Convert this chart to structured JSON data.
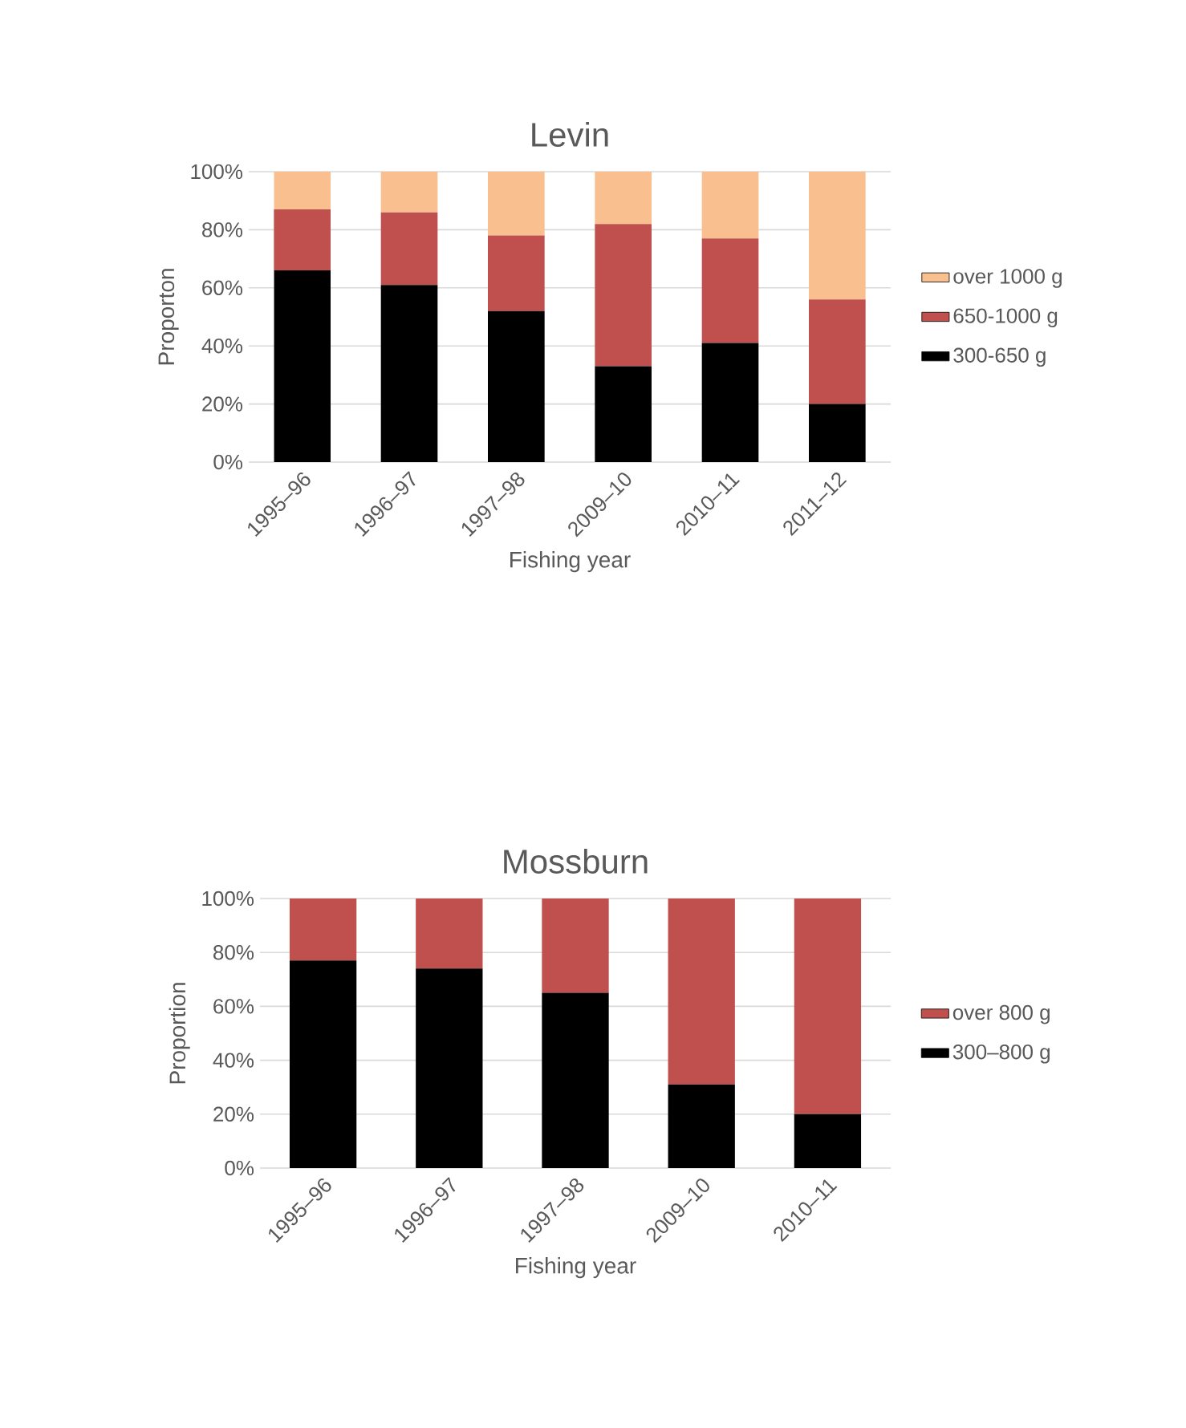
{
  "chart_data": [
    {
      "type": "bar",
      "stacked": true,
      "title": "Levin",
      "xlabel": "Fishing year",
      "ylabel": "Proporton",
      "categories": [
        "1995–96",
        "1996–97",
        "1997–98",
        "2009–10",
        "2010–11",
        "2011–12"
      ],
      "series": [
        {
          "name": "300-650 g",
          "color": "#000000",
          "values": [
            66,
            61,
            52,
            33,
            41,
            20
          ]
        },
        {
          "name": "650-1000 g",
          "color": "#c0504d",
          "values": [
            21,
            25,
            26,
            49,
            36,
            36
          ]
        },
        {
          "name": "over 1000 g",
          "color": "#f9bf8f",
          "values": [
            13,
            14,
            22,
            18,
            23,
            44
          ]
        }
      ],
      "ylim": [
        0,
        100
      ],
      "yticks": [
        {
          "value": 0,
          "label": "0%"
        },
        {
          "value": 20,
          "label": "20%"
        },
        {
          "value": 40,
          "label": "40%"
        },
        {
          "value": 60,
          "label": "60%"
        },
        {
          "value": 80,
          "label": "80%"
        },
        {
          "value": 100,
          "label": "100%"
        }
      ],
      "grid": "y",
      "legend": "right"
    },
    {
      "type": "bar",
      "stacked": true,
      "title": "Mossburn",
      "xlabel": "Fishing year",
      "ylabel": "Proportion",
      "categories": [
        "1995–96",
        "1996–97",
        "1997–98",
        "2009–10",
        "2010–11"
      ],
      "series": [
        {
          "name": "300–800 g",
          "color": "#000000",
          "values": [
            77,
            74,
            65,
            31,
            20
          ]
        },
        {
          "name": "over 800 g",
          "color": "#c0504d",
          "values": [
            23,
            26,
            35,
            69,
            80
          ]
        }
      ],
      "ylim": [
        0,
        100
      ],
      "yticks": [
        {
          "value": 0,
          "label": "0%"
        },
        {
          "value": 20,
          "label": "20%"
        },
        {
          "value": 40,
          "label": "40%"
        },
        {
          "value": 60,
          "label": "60%"
        },
        {
          "value": 80,
          "label": "80%"
        },
        {
          "value": 100,
          "label": "100%"
        }
      ],
      "grid": "y",
      "legend": "right"
    }
  ]
}
